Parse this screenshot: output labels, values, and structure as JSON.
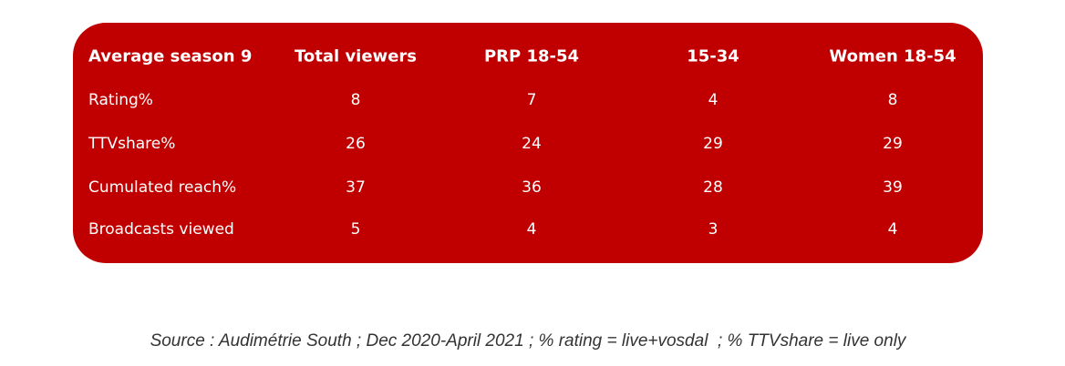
{
  "table": {
    "header": [
      "Average season 9",
      "Total viewers",
      "PRP 18-54",
      "15-34",
      "Women 18-54"
    ],
    "rows": [
      [
        "Rating%",
        8,
        7,
        4,
        8
      ],
      [
        "TTVshare%",
        26,
        24,
        29,
        29
      ],
      [
        "Cumulated reach%",
        37,
        36,
        28,
        39
      ],
      [
        "Broadcasts viewed",
        5,
        4,
        3,
        4
      ]
    ]
  },
  "caption": "Source : Audimétrie South ; Dec 2020-April 2021 ; % rating = live+vosdal  ; % TTVshare = live only"
}
